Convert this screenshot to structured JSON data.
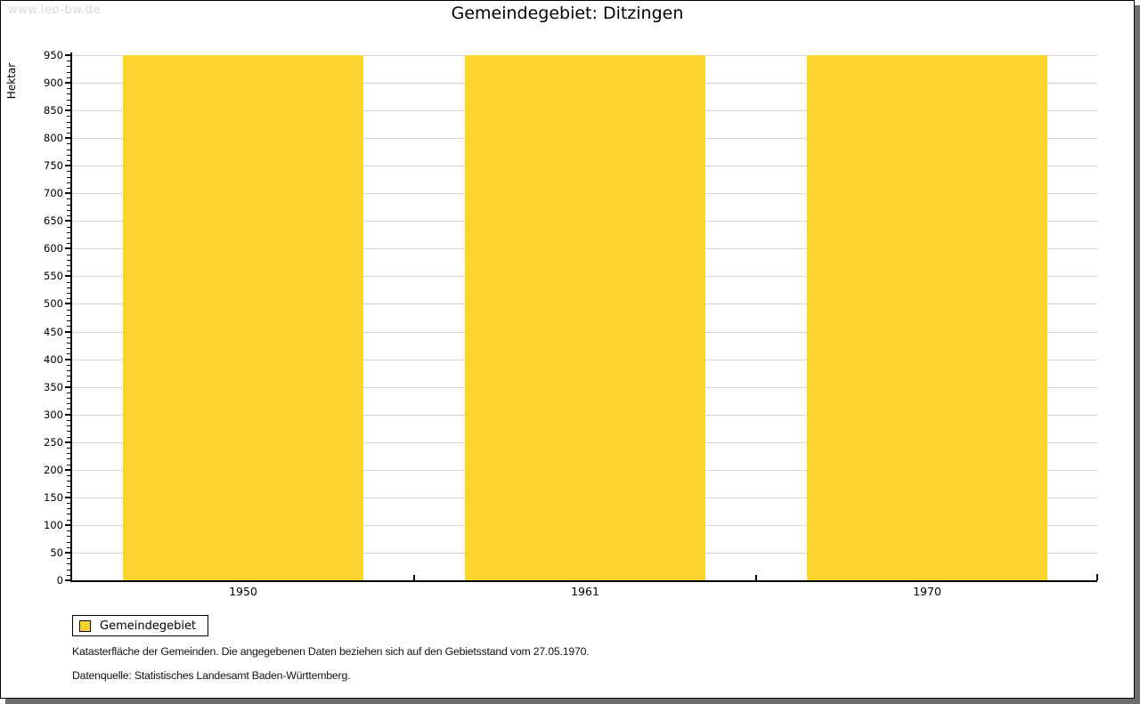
{
  "page": {
    "watermark": "www.leo-bw.de"
  },
  "title": "Gemeindegebiet: Ditzingen",
  "chart_data": {
    "type": "bar",
    "title": "Gemeindegebiet: Ditzingen",
    "categories": [
      "1950",
      "1961",
      "1970"
    ],
    "series": [
      {
        "name": "Gemeindegebiet",
        "values": [
          950,
          950,
          950
        ],
        "color": "#fdd42e"
      }
    ],
    "xlabel": "",
    "ylabel": "Hektar",
    "ylim": [
      0,
      950
    ],
    "ytick_major_interval": 50,
    "ytick_minor_interval": 10,
    "grid": true,
    "gridline_color": "#d9d9d9",
    "legend_position": "bottom-left"
  },
  "legend": {
    "items": [
      {
        "label": "Gemeindegebiet",
        "color": "#fdd42e"
      }
    ]
  },
  "notes": {
    "description": "Katasterfläche der Gemeinden. Die angegebenen Daten beziehen sich auf den Gebietsstand vom 27.05.1970.",
    "source": "Datenquelle: Statistisches Landesamt Baden-Württemberg."
  }
}
